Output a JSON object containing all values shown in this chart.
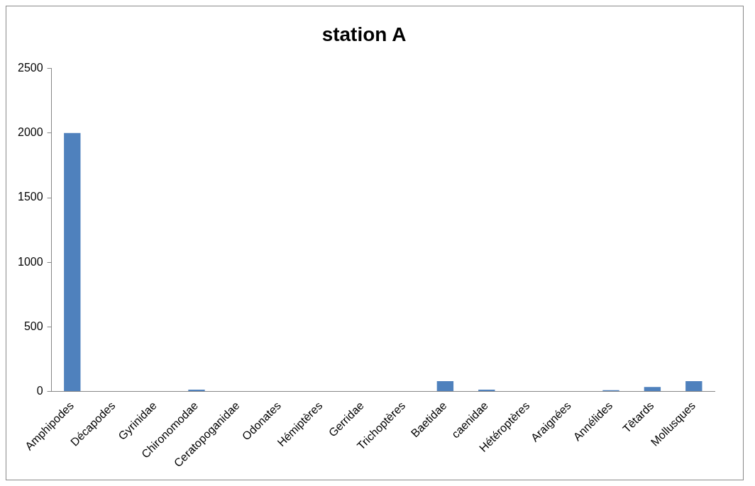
{
  "chart_data": {
    "type": "bar",
    "title": "station A",
    "categories": [
      "Amphipodes",
      "Décapodes",
      "Gyrinidae",
      "Chironomodae",
      "Ceratopoganidae",
      "Odonates",
      "Hémiptères",
      "Gerridae",
      "Trichoptères",
      "Baetidae",
      "caenidae",
      "Hétéroptères",
      "Araignées",
      "Annélides",
      "Têtards",
      "Mollusques"
    ],
    "values": [
      2000,
      0,
      0,
      15,
      0,
      0,
      0,
      0,
      0,
      80,
      15,
      0,
      0,
      10,
      35,
      80
    ],
    "color": "#4f81bd",
    "ylim": [
      0,
      2500
    ],
    "yticks": [
      0,
      500,
      1000,
      1500,
      2000,
      2500
    ],
    "grid": false,
    "legend": false
  }
}
